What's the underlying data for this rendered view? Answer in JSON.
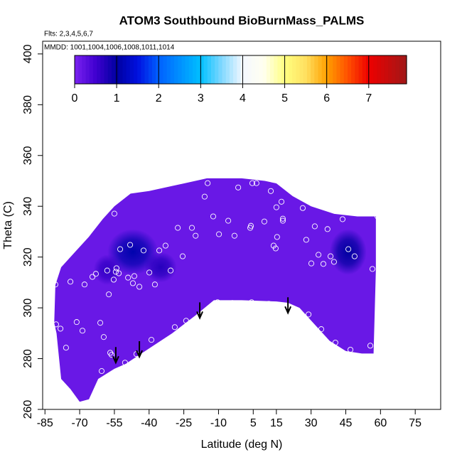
{
  "chart_data": {
    "type": "contour",
    "title": "ATOM3 Southbound BioBurnMass_PALMS",
    "subtitle": "Flts: 2,3,4,5,6,7",
    "annotation": "MMDD: 1001,1004,1006,1008,1011,1014",
    "x_label": "Latitude (deg N)",
    "y_label": "Theta (C)",
    "xlim": [
      -86,
      86
    ],
    "ylim": [
      260,
      405
    ],
    "xticks": [
      -85,
      -70,
      -55,
      -40,
      -25,
      -10,
      5,
      15,
      30,
      45,
      60,
      75
    ],
    "yticks": [
      260,
      280,
      300,
      320,
      340,
      360,
      380,
      400
    ],
    "colorbar": {
      "lim": [
        0,
        7.9
      ],
      "ticks": [
        0,
        1,
        2,
        3,
        4,
        5,
        6,
        7
      ],
      "stops": [
        {
          "value": 0,
          "color": "#7a22f0"
        },
        {
          "value": 0.5,
          "color": "#4000d0"
        },
        {
          "value": 1,
          "color": "#0000a0"
        },
        {
          "value": 1.5,
          "color": "#0010e0"
        },
        {
          "value": 2,
          "color": "#0060ff"
        },
        {
          "value": 2.5,
          "color": "#0090ff"
        },
        {
          "value": 3,
          "color": "#00c0ff"
        },
        {
          "value": 3.5,
          "color": "#80d8ff"
        },
        {
          "value": 4,
          "color": "#f4f8ff"
        },
        {
          "value": 4.5,
          "color": "#fffff0"
        },
        {
          "value": 5,
          "color": "#ffff80"
        },
        {
          "value": 5.5,
          "color": "#ffe060"
        },
        {
          "value": 6,
          "color": "#ffa000"
        },
        {
          "value": 6.5,
          "color": "#ff5000"
        },
        {
          "value": 7,
          "color": "#ee0000"
        },
        {
          "value": 7.9,
          "color": "#a01818"
        }
      ]
    },
    "region": {
      "value": 0.15,
      "x": [
        -80.5,
        -78,
        -72,
        -66,
        -60,
        -55,
        -48,
        -40,
        -30,
        -20,
        -15,
        0,
        10,
        15,
        22,
        30,
        40,
        50,
        58,
        58,
        57,
        52,
        45,
        38,
        32,
        25,
        20,
        15,
        0,
        -12,
        -20,
        -30,
        -40,
        -50,
        -55,
        -62,
        -66,
        -70,
        -74,
        -78,
        -80,
        -81
      ],
      "y": [
        309,
        316,
        322,
        328,
        335,
        340,
        345,
        346,
        348,
        350,
        351,
        351,
        350,
        349,
        344,
        340,
        337,
        336,
        336,
        315,
        282,
        282,
        283,
        287,
        293,
        300,
        302,
        302.5,
        303,
        303,
        297,
        290,
        284,
        278,
        276,
        272,
        264,
        263,
        268,
        272,
        290,
        294
      ]
    },
    "features": [
      {
        "x": -47,
        "y": 322,
        "rx": 11,
        "ry": 9,
        "value": 1.1
      },
      {
        "x": -35,
        "y": 316,
        "rx": 7,
        "ry": 6,
        "value": 0.7
      },
      {
        "x": -58,
        "y": 315,
        "rx": 6,
        "ry": 6,
        "value": 0.6
      },
      {
        "x": 46,
        "y": 322,
        "rx": 8,
        "ry": 9,
        "value": 1.0
      }
    ],
    "points": {
      "color": "#ffffff",
      "x": [
        -80.5,
        -80.2,
        -78.3,
        -75.9,
        -74,
        -71.3,
        -68.8,
        -67.9,
        -64.5,
        -63,
        -61.1,
        -59.6,
        -58.1,
        -57.4,
        -56.8,
        -56.2,
        -60.5,
        -55,
        -55.3,
        -54.4,
        -54.1,
        -53.1,
        -52.5,
        -50.4,
        -49.1,
        -48.2,
        -47,
        -46.4,
        -45.5,
        -44.2,
        -42.4,
        -39.9,
        -39,
        -37.5,
        -35.6,
        -32.9,
        -30.7,
        -28.9,
        -27.6,
        -25.5,
        -24,
        -21.5,
        -19.9,
        -16,
        -14.7,
        -12.3,
        -10.4,
        -9.8,
        -5.8,
        -4,
        -3.1,
        -1.5,
        1.8,
        3.7,
        4,
        4.6,
        4.3,
        6.4,
        9.8,
        11.7,
        12.6,
        13.8,
        14.7,
        15,
        15.3,
        15.3,
        17.2,
        17.8,
        17.8,
        26.4,
        27.9,
        28.9,
        30.1,
        31.6,
        33.2,
        34.4,
        35.3,
        37.1,
        38.4,
        39.9,
        40.5,
        43.6,
        46.1,
        47,
        48.8,
        55.6,
        56.5,
        58.7
      ],
      "y": [
        309.2,
        293.5,
        291.8,
        284.3,
        310.3,
        294.4,
        291,
        309.2,
        312.2,
        313.4,
        294.1,
        288.5,
        314.7,
        305.3,
        282.3,
        281.5,
        275.1,
        337.1,
        311.1,
        314.2,
        315.6,
        313.6,
        323.1,
        278.4,
        311.9,
        324.8,
        309.7,
        312.5,
        281.8,
        308.3,
        322.6,
        313.9,
        287.4,
        309.2,
        322.6,
        324.5,
        314.7,
        292.4,
        331.5,
        320.3,
        294.9,
        331.5,
        328.4,
        343.8,
        349.1,
        336,
        302.2,
        329,
        334.3,
        301.9,
        328.4,
        347.4,
        301.6,
        331.5,
        332.3,
        349.1,
        302.2,
        349.1,
        334,
        301.6,
        346,
        324.5,
        323.4,
        339.6,
        327.9,
        301.1,
        341.8,
        334.3,
        335.1,
        339.3,
        326.8,
        297.4,
        317.5,
        332.1,
        320.9,
        291.6,
        317.3,
        331,
        320.3,
        318.1,
        286.3,
        334.9,
        323.1,
        283.5,
        320.3,
        285.1,
        315.3,
        336
      ]
    },
    "arrows": {
      "x": [
        -54.4,
        -44.2,
        -18.1,
        20
      ],
      "y": [
        278.4,
        280.7,
        296,
        298
      ]
    }
  }
}
